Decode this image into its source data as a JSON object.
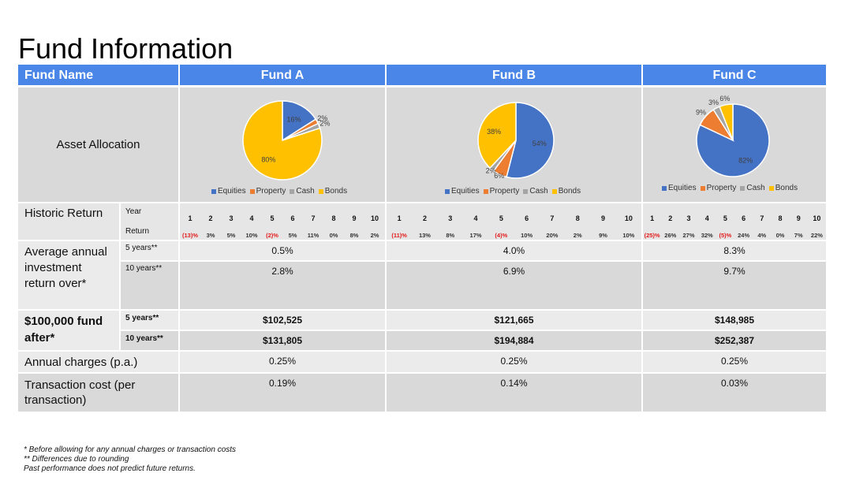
{
  "title": "Fund Information",
  "header": {
    "fund_name": "Fund Name",
    "funds": [
      "Fund A",
      "Fund B",
      "Fund C"
    ]
  },
  "colors": {
    "equities": "#4472c4",
    "property": "#ed7d31",
    "cash": "#a5a5a5",
    "bonds": "#ffc000",
    "header": "#4a86e8"
  },
  "asset_allocation": {
    "label": "Asset Allocation",
    "legend": [
      "Equities",
      "Property",
      "Cash",
      "Bonds"
    ]
  },
  "historic": {
    "label": "Historic Return",
    "year_label": "Year",
    "return_label": "Return",
    "years": [
      "1",
      "2",
      "3",
      "4",
      "5",
      "6",
      "7",
      "8",
      "9",
      "10"
    ]
  },
  "average": {
    "label": "Average annual investment return over*",
    "p5": "5 years**",
    "p10": "10 years**"
  },
  "fund_after": {
    "label": "$100,000 fund after*",
    "p5": "5 years**",
    "p10": "10 years**"
  },
  "charges": {
    "label": "Annual charges (p.a.)"
  },
  "transaction": {
    "label": "Transaction cost (per transaction)"
  },
  "funds": [
    {
      "returns": [
        "(13)%",
        "3%",
        "5%",
        "10%",
        "(2)%",
        "5%",
        "11%",
        "0%",
        "8%",
        "2%"
      ],
      "avg5": "0.5%",
      "avg10": "2.8%",
      "after5": "$102,525",
      "after10": "$131,805",
      "charges": "0.25%",
      "transaction": "0.19%"
    },
    {
      "returns": [
        "(11)%",
        "13%",
        "8%",
        "17%",
        "(4)%",
        "10%",
        "20%",
        "2%",
        "9%",
        "10%"
      ],
      "avg5": "4.0%",
      "avg10": "6.9%",
      "after5": "$121,665",
      "after10": "$194,884",
      "charges": "0.25%",
      "transaction": "0.14%"
    },
    {
      "returns": [
        "(25)%",
        "26%",
        "27%",
        "32%",
        "(5)%",
        "24%",
        "4%",
        "0%",
        "7%",
        "22%"
      ],
      "avg5": "8.3%",
      "avg10": "9.7%",
      "after5": "$148,985",
      "after10": "$252,387",
      "charges": "0.25%",
      "transaction": "0.03%"
    }
  ],
  "chart_data": [
    {
      "type": "pie",
      "categories": [
        "Equities",
        "Property",
        "Cash",
        "Bonds"
      ],
      "values": [
        16,
        2,
        2,
        80
      ],
      "labels": [
        "16%",
        "2%",
        "2%",
        "80%"
      ]
    },
    {
      "type": "pie",
      "categories": [
        "Equities",
        "Property",
        "Cash",
        "Bonds"
      ],
      "values": [
        54,
        6,
        2,
        38
      ],
      "labels": [
        "54%",
        "6%",
        "2%",
        "38%"
      ]
    },
    {
      "type": "pie",
      "categories": [
        "Equities",
        "Property",
        "Cash",
        "Bonds"
      ],
      "values": [
        82,
        9,
        3,
        6
      ],
      "labels": [
        "82%",
        "9%",
        "3%",
        "6%"
      ]
    }
  ],
  "footnotes": [
    "* Before allowing for any annual charges or transaction costs",
    "** Differences due to rounding",
    "Past performance does not predict future returns."
  ]
}
